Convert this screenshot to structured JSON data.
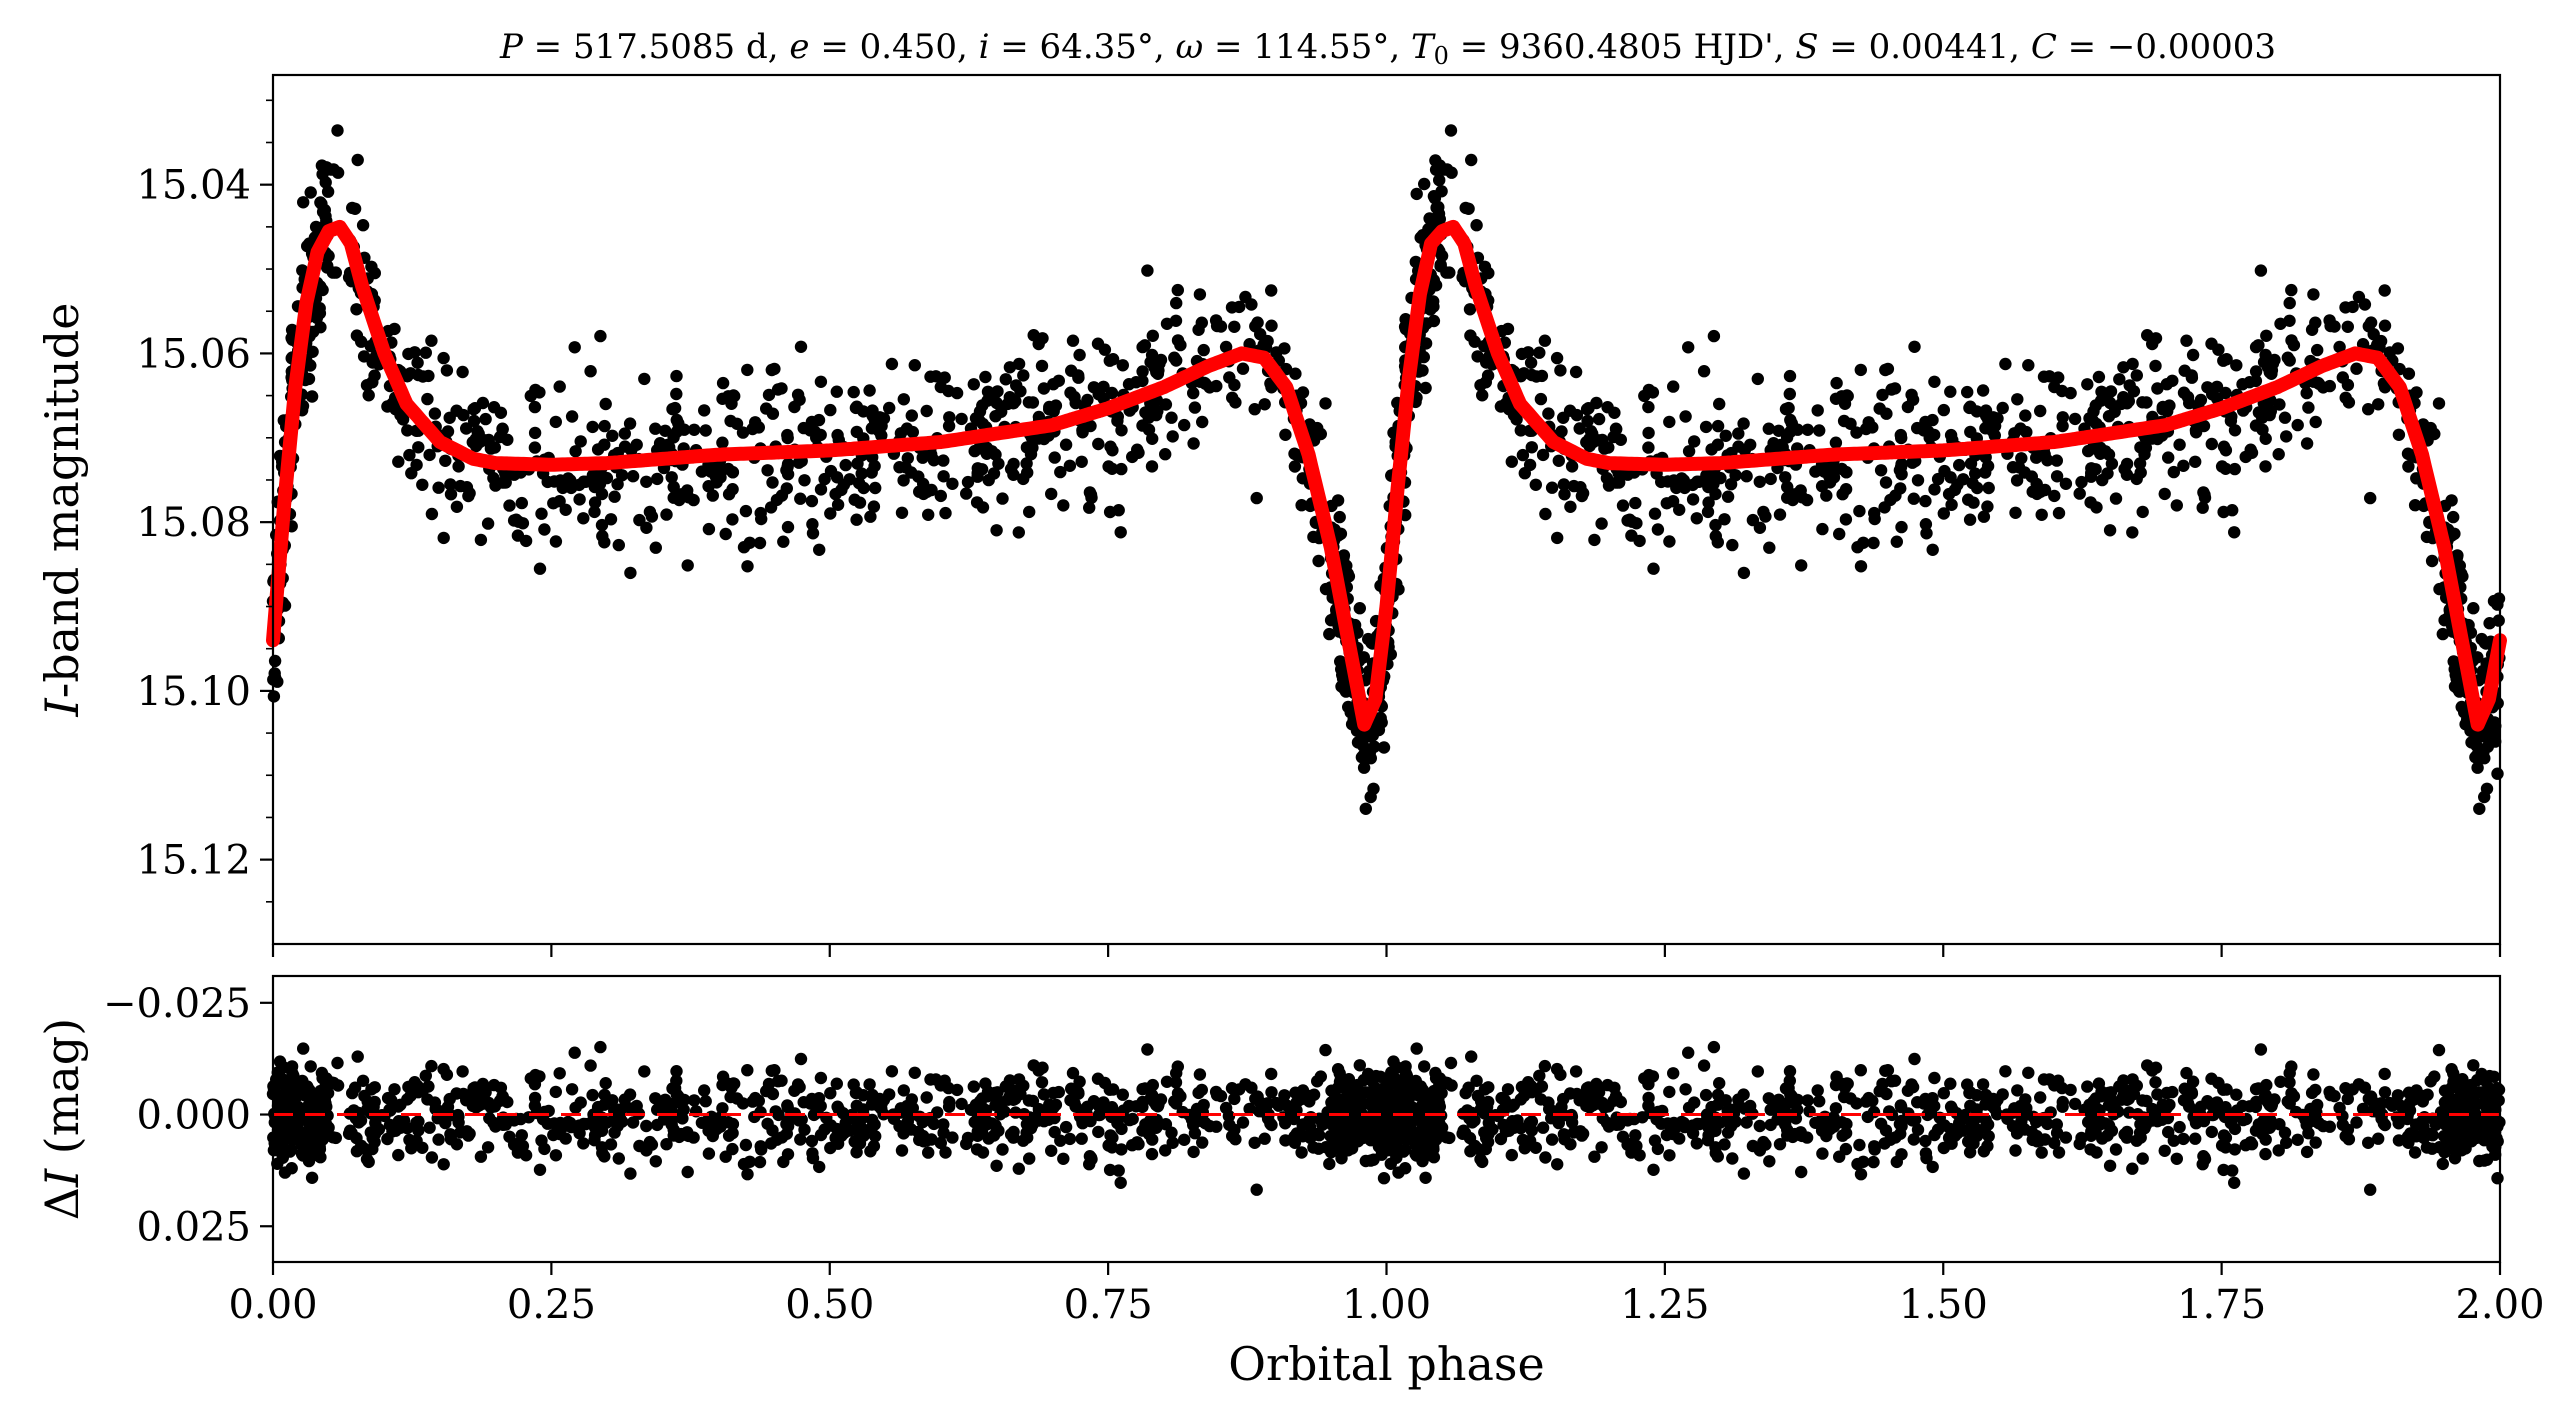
{
  "chart_data": [
    {
      "panel": "top",
      "type": "scatter",
      "title": "P = 517.5085 d, e = 0.450, i = 64.35°, ω = 114.55°, T0 = 9360.4805 HJD', S = 0.00441, C = −0.00003",
      "xlabel": "",
      "ylabel": "I-band magnitude",
      "ylabel_italic_part": "I",
      "ylabel_rest": "-band magnitude",
      "xlim": [
        0.0,
        2.0
      ],
      "ylim": [
        15.13,
        15.027
      ],
      "y_inverted": true,
      "yticks": [
        15.04,
        15.06,
        15.08,
        15.1,
        15.12
      ],
      "ytick_labels": [
        "15.04",
        "15.06",
        "15.08",
        "15.10",
        "15.12"
      ],
      "xticks": [
        0.0,
        0.25,
        0.5,
        0.75,
        1.0,
        1.25,
        1.5,
        1.75,
        2.0
      ],
      "series": [
        {
          "name": "",
          "kind": "observations",
          "color": "#000000"
        },
        {
          "name": "",
          "kind": "model",
          "color": "#ff0000"
        }
      ],
      "model_curve": {
        "x": [
          0.0,
          0.01,
          0.02,
          0.03,
          0.04,
          0.05,
          0.06,
          0.07,
          0.08,
          0.1,
          0.12,
          0.15,
          0.18,
          0.2,
          0.25,
          0.3,
          0.4,
          0.5,
          0.6,
          0.7,
          0.75,
          0.8,
          0.84,
          0.87,
          0.89,
          0.91,
          0.93,
          0.95,
          0.96,
          0.97,
          0.98,
          0.99,
          1.0,
          1.01,
          1.02,
          1.03,
          1.04,
          1.05,
          1.06,
          1.07,
          1.08,
          1.1,
          1.12,
          1.15,
          1.18,
          1.2,
          1.25,
          1.3,
          1.4,
          1.5,
          1.6,
          1.7,
          1.75,
          1.8,
          1.84,
          1.87,
          1.89,
          1.91,
          1.93,
          1.95,
          1.96,
          1.97,
          1.98,
          1.99,
          2.0
        ],
        "y": [
          15.094,
          15.078,
          15.064,
          15.054,
          15.048,
          15.0455,
          15.045,
          15.047,
          15.052,
          15.06,
          15.066,
          15.0705,
          15.0725,
          15.073,
          15.0732,
          15.073,
          15.072,
          15.0715,
          15.0705,
          15.0685,
          15.0665,
          15.064,
          15.0615,
          15.06,
          15.0605,
          15.064,
          15.072,
          15.083,
          15.09,
          15.097,
          15.104,
          15.101,
          15.09,
          15.076,
          15.063,
          15.053,
          15.047,
          15.0455,
          15.045,
          15.047,
          15.052,
          15.06,
          15.066,
          15.0705,
          15.0725,
          15.073,
          15.0732,
          15.073,
          15.072,
          15.0715,
          15.0705,
          15.0685,
          15.0665,
          15.064,
          15.0615,
          15.06,
          15.0605,
          15.064,
          15.072,
          15.083,
          15.09,
          15.097,
          15.104,
          15.101,
          15.094
        ]
      },
      "observations": {
        "count": 1100,
        "phase_range": [
          0.0,
          2.0
        ],
        "scatter_mag": 0.006
      }
    },
    {
      "panel": "bottom",
      "type": "scatter",
      "xlabel": "Orbital phase",
      "ylabel": "ΔI (mag)",
      "ylabel_delta": "Δ",
      "ylabel_italic_part": "I",
      "ylabel_rest": " (mag)",
      "xlim": [
        0.0,
        2.0
      ],
      "ylim": [
        0.033,
        -0.031
      ],
      "y_inverted": true,
      "yticks": [
        -0.025,
        0.0,
        0.025
      ],
      "ytick_labels": [
        "−0.025",
        "0.000",
        "0.025"
      ],
      "xticks": [
        0.0,
        0.25,
        0.5,
        0.75,
        1.0,
        1.25,
        1.5,
        1.75,
        2.0
      ],
      "xtick_labels": [
        "0.00",
        "0.25",
        "0.50",
        "0.75",
        "1.00",
        "1.25",
        "1.50",
        "1.75",
        "2.00"
      ],
      "reference_line": {
        "y": 0.0,
        "style": "dashed",
        "color": "#ff0000"
      },
      "residuals": {
        "count": 1100,
        "scatter_mag": 0.006
      }
    }
  ],
  "colors": {
    "points": "#000000",
    "model": "#ff0000",
    "axes": "#000000"
  }
}
